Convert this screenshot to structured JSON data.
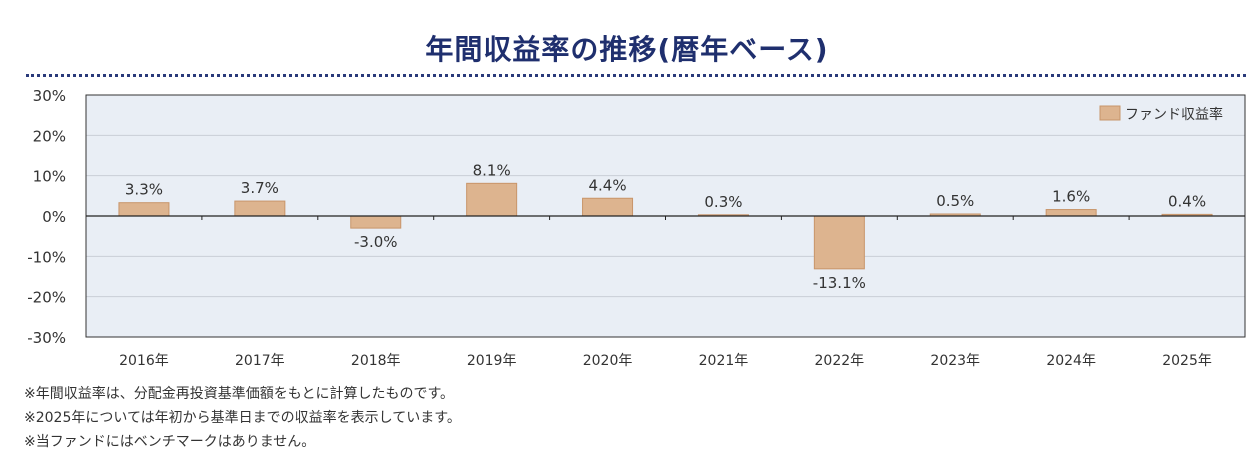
{
  "title": "年間収益率の推移(暦年ベース)",
  "notes": [
    "※年間収益率は、分配金再投資基準価額をもとに計算したものです。",
    "※2025年については年初から基準日までの収益率を表示しています。",
    "※当ファンドにはベンチマークはありません。"
  ],
  "colors": {
    "bar": "#ddb48f",
    "bar_stroke": "#c8956a",
    "band": "#e9eef5",
    "frame": "#333333",
    "grid": "#c9ced6",
    "title": "#1f2f6e"
  },
  "chart_data": {
    "type": "bar",
    "title": "",
    "xlabel": "",
    "ylabel": "",
    "categories": [
      "2016年",
      "2017年",
      "2018年",
      "2019年",
      "2020年",
      "2021年",
      "2022年",
      "2023年",
      "2024年",
      "2025年"
    ],
    "series": [
      {
        "name": "ファンド収益率",
        "values": [
          3.3,
          3.7,
          -3.0,
          8.1,
          4.4,
          0.3,
          -13.1,
          0.5,
          1.6,
          0.4
        ],
        "labels": [
          "3.3%",
          "3.7%",
          "-3.0%",
          "8.1%",
          "4.4%",
          "0.3%",
          "-13.1%",
          "0.5%",
          "1.6%",
          "0.4%"
        ]
      }
    ],
    "ylim": [
      -30,
      30
    ],
    "yticks": [
      30,
      20,
      10,
      0,
      -10,
      -20,
      -30
    ],
    "ytick_labels": [
      "30%",
      "20%",
      "10%",
      "0%",
      "-10%",
      "-20%",
      "-30%"
    ],
    "grid": true,
    "legend_position": "top-right"
  }
}
